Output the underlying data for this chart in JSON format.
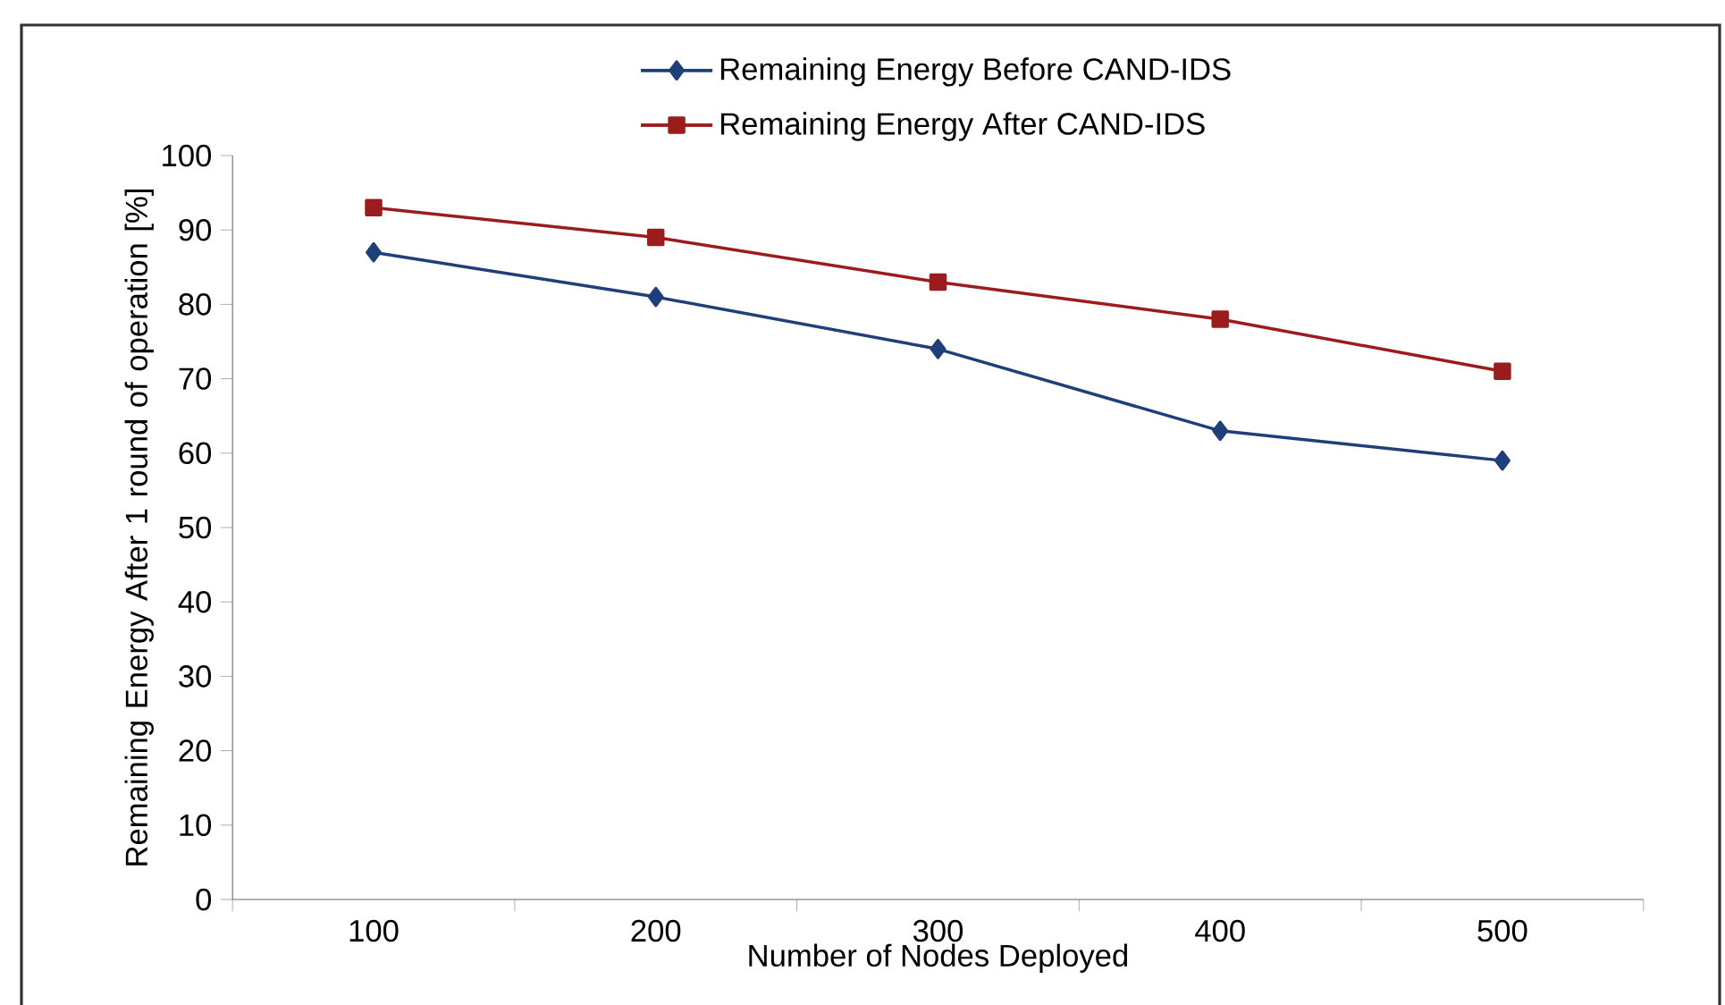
{
  "chart_data": {
    "type": "line",
    "xlabel": "Number of Nodes Deployed",
    "ylabel": "Remaining Energy After 1 round of operation [%]",
    "categories": [
      "100",
      "200",
      "300",
      "400",
      "500"
    ],
    "series": [
      {
        "name": "Remaining Energy Before CAND-IDS",
        "color": "#1f3f7a",
        "marker": "diamond",
        "values": [
          87,
          81,
          74,
          63,
          59
        ]
      },
      {
        "name": "Remaining Energy After CAND-IDS",
        "color": "#9b1c1c",
        "marker": "square",
        "values": [
          93,
          89,
          83,
          78,
          71
        ]
      }
    ],
    "ylim": [
      0,
      100
    ],
    "yticks": [
      0,
      10,
      20,
      30,
      40,
      50,
      60,
      70,
      80,
      90,
      100
    ],
    "grid": false,
    "legend": "top",
    "line_style": "solid"
  }
}
